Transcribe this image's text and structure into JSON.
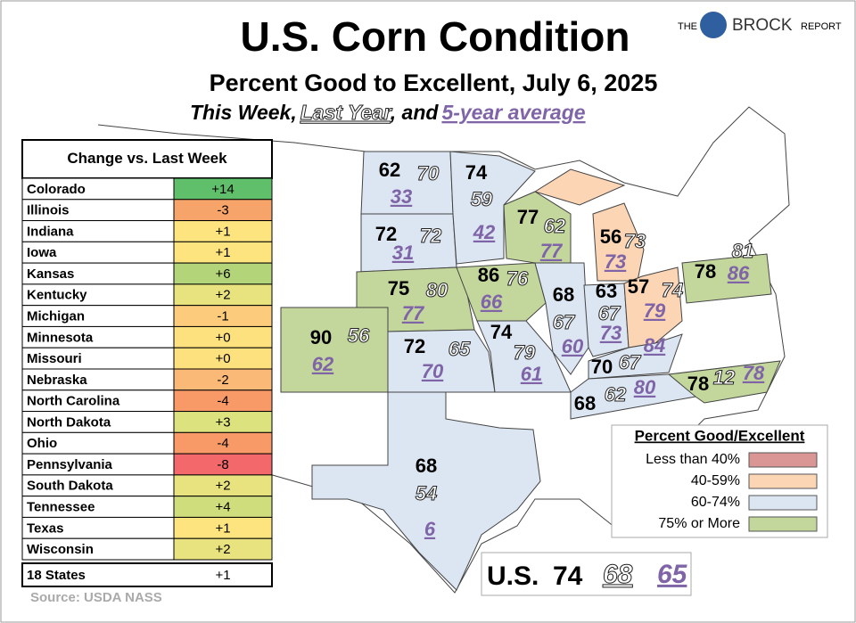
{
  "header": {
    "title": "U.S. Corn Condition",
    "subtitle": "Percent Good to Excellent, July 6, 2025",
    "key": {
      "this_week": "This Week",
      "sep1": ",",
      "last_year": "Last Year",
      "sep2": ", and",
      "average": "5-year average"
    }
  },
  "logo": {
    "pre": "THE",
    "name": "BROCK",
    "post": "REPORT"
  },
  "table": {
    "title": "Change vs. Last Week",
    "rows": [
      [
        "Colorado",
        "+14",
        "#5fbf6a"
      ],
      [
        "Illinois",
        "-3",
        "#f7a46a"
      ],
      [
        "Indiana",
        "+1",
        "#fde47f"
      ],
      [
        "Iowa",
        "+1",
        "#fde47f"
      ],
      [
        "Kansas",
        "+6",
        "#b4d47a"
      ],
      [
        "Kentucky",
        "+2",
        "#e9e37f"
      ],
      [
        "Michigan",
        "-1",
        "#fdcb7c"
      ],
      [
        "Minnesota",
        "+0",
        "#fde17f"
      ],
      [
        "Missouri",
        "+0",
        "#fde17f"
      ],
      [
        "Nebraska",
        "-2",
        "#fbb977"
      ],
      [
        "North Carolina",
        "-4",
        "#f79a68"
      ],
      [
        "North Dakota",
        "+3",
        "#dce27e"
      ],
      [
        "Ohio",
        "-4",
        "#f79a68"
      ],
      [
        "Pennsylvania",
        "-8",
        "#f2686b"
      ],
      [
        "South Dakota",
        "+2",
        "#e9e37f"
      ],
      [
        "Tennessee",
        "+4",
        "#cfdd7c"
      ],
      [
        "Texas",
        "+1",
        "#fde47f"
      ],
      [
        "Wisconsin",
        "+2",
        "#e9e37f"
      ]
    ],
    "total": [
      "18 States",
      "+1"
    ]
  },
  "source": "Source: USDA NASS",
  "states": [
    {
      "this_week": 62,
      "last_year": 70,
      "avg": 33,
      "color": "#dce6f2"
    },
    {
      "this_week": 72,
      "last_year": 72,
      "avg": 31,
      "color": "#dce6f2"
    },
    {
      "this_week": 75,
      "last_year": 80,
      "avg": 77,
      "color": "#c3d69b"
    },
    {
      "this_week": 90,
      "last_year": 56,
      "avg": 62,
      "color": "#c3d69b"
    },
    {
      "this_week": 72,
      "last_year": 65,
      "avg": 70,
      "color": "#dce6f2"
    },
    {
      "this_week": 74,
      "last_year": 59,
      "avg": 42,
      "color": "#dce6f2"
    },
    {
      "this_week": 86,
      "last_year": 76,
      "avg": 66,
      "color": "#c3d69b"
    },
    {
      "this_week": 74,
      "last_year": 79,
      "avg": 61,
      "color": "#dce6f2"
    },
    {
      "this_week": 77,
      "last_year": 62,
      "avg": 77,
      "color": "#c3d69b"
    },
    {
      "this_week": 68,
      "last_year": 67,
      "avg": 60,
      "color": "#dce6f2"
    },
    {
      "this_week": 63,
      "last_year": 67,
      "avg": 73,
      "color": "#dce6f2"
    },
    {
      "this_week": 56,
      "last_year": 73,
      "avg": 73,
      "color": "#fcd5b5"
    },
    {
      "this_week": 57,
      "last_year": 74,
      "avg": 79,
      "color": "#fcd5b5"
    },
    {
      "this_week": 78,
      "last_year": 81,
      "avg": 86,
      "color": "#c3d69b"
    },
    {
      "this_week": 70,
      "last_year": 67,
      "avg": 84,
      "color": "#dce6f2"
    },
    {
      "this_week": 68,
      "last_year": 62,
      "avg": 80,
      "color": "#dce6f2"
    },
    {
      "this_week": 78,
      "last_year": 12,
      "avg": 78,
      "color": "#c3d69b"
    },
    {
      "this_week": 68,
      "last_year": 54,
      "avg": 6,
      "color": "#dce6f2"
    }
  ],
  "legend": {
    "title": "Percent Good/Excellent",
    "items": [
      {
        "label": "Less than 40%",
        "color": "#d99694"
      },
      {
        "label": "40-59%",
        "color": "#fcd5b5"
      },
      {
        "label": "60-74%",
        "color": "#dce6f2"
      },
      {
        "label": "75% or More",
        "color": "#c3d69b"
      }
    ]
  },
  "us": {
    "label": "U.S.",
    "this_week": 74,
    "last_year": 68,
    "avg": 65
  }
}
